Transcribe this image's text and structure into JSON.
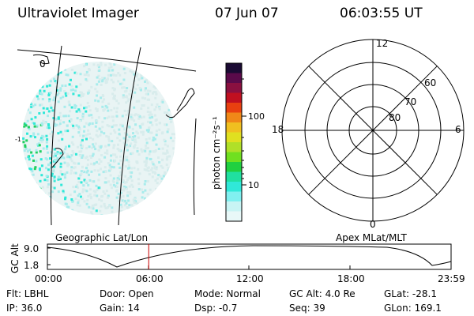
{
  "header": {
    "title": "Ultraviolet Imager",
    "date": "07 Jun 07",
    "time": "06:03:55 UT"
  },
  "geo_map": {
    "label_10": "0",
    "label_left": "-1"
  },
  "colorbar": {
    "unit_label": "photon cm⁻²s⁻¹",
    "ticks": [
      "100",
      "10"
    ],
    "colors": [
      "#1a0a33",
      "#5a0a4a",
      "#8a1040",
      "#c01020",
      "#e84010",
      "#f08818",
      "#f0c020",
      "#e0e020",
      "#b0e028",
      "#70e020",
      "#20d040",
      "#20e0a0",
      "#30e8d8",
      "#80f0f0",
      "#c8f4f4",
      "#e8f8f8"
    ]
  },
  "polar": {
    "mlt_top": "12",
    "mlt_left": "18",
    "mlt_right": "6",
    "mlt_bottom": "0",
    "lat_60": "60",
    "lat_70": "70",
    "lat_80": "80"
  },
  "timeline": {
    "left_title": "Geographic Lat/Lon",
    "right_title": "Apex MLat/MLT",
    "axis_label": "GC Alt",
    "y_top": "9.0",
    "y_bottom": "1.8",
    "x_ticks": [
      "00:00",
      "06:00",
      "12:00",
      "18:00",
      "23:59"
    ],
    "current_time_fraction": 0.251
  },
  "info": {
    "flt": "Flt: LBHL",
    "ip": "IP: 36.0",
    "door": "Door: Open",
    "gain": "Gain: 14",
    "mode": "Mode: Normal",
    "dsp": "Dsp:    -0.7",
    "gc_alt": "GC Alt: 4.0 Re",
    "seq": "Seq: 39",
    "glat": "GLat:  -28.1",
    "glon": "GLon: 169.1"
  },
  "colors": {
    "accent_line": "#cc0000",
    "low_intensity": "#d8ecec",
    "mid_intensity": "#30e8d8",
    "high_intensity": "#20d060"
  }
}
